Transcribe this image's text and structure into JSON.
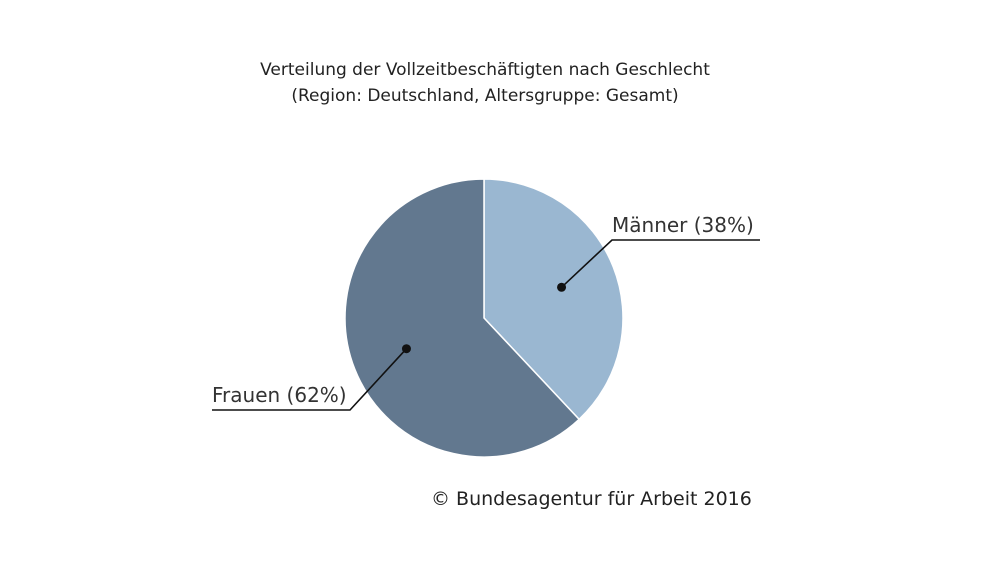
{
  "chart_data": {
    "type": "pie",
    "title": "Verteilung der Vollzeitbeschäftigten nach Geschlecht",
    "subtitle": "(Region: Deutschland, Altersgruppe: Gesamt)",
    "slices": [
      {
        "label": "Männer (38%)",
        "value": 38,
        "color": "#9ab7d1"
      },
      {
        "label": "Frauen (62%)",
        "value": 62,
        "color": "#62788f"
      }
    ],
    "start": "top",
    "direction": "clockwise",
    "source": "© Bundesagentur für Arbeit 2016"
  }
}
